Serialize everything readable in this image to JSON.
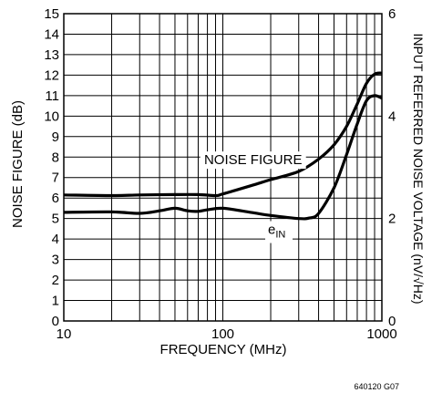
{
  "chart_data": {
    "type": "line",
    "x_scale": "log",
    "xlim": [
      10,
      1000
    ],
    "ylim": [
      0,
      15
    ],
    "y2lim": [
      0,
      6
    ],
    "grid": true,
    "xlabel": "FREQUENCY (MHz)",
    "ylabel": "NOISE FIGURE (dB)",
    "y2label": "INPUT REFERRED NOISE VOLTAGE (nV/√Hz)",
    "x_ticks": [
      10,
      100,
      1000
    ],
    "x_tick_labels": [
      "10",
      "100",
      "1000"
    ],
    "y_ticks": [
      0,
      1,
      2,
      3,
      4,
      5,
      6,
      7,
      8,
      9,
      10,
      11,
      12,
      13,
      14,
      15
    ],
    "y_tick_labels": [
      "0",
      "1",
      "2",
      "3",
      "4",
      "5",
      "6",
      "7",
      "8",
      "9",
      "10",
      "11",
      "12",
      "13",
      "14",
      "15"
    ],
    "y2_ticks": [
      0,
      2,
      4,
      6
    ],
    "y2_tick_labels": [
      "0",
      "2",
      "4",
      "6"
    ],
    "figure_id": "640120 G07",
    "series": [
      {
        "name": "NOISE FIGURE",
        "axis": "left",
        "x": [
          10,
          20,
          30,
          50,
          70,
          90,
          100,
          150,
          200,
          300,
          400,
          500,
          600,
          700,
          800,
          900,
          1000
        ],
        "y": [
          6.15,
          6.12,
          6.15,
          6.17,
          6.17,
          6.12,
          6.2,
          6.6,
          6.9,
          7.3,
          7.9,
          8.6,
          9.5,
          10.6,
          11.6,
          12.05,
          12.1
        ]
      },
      {
        "name": "e",
        "name_sub": "IN",
        "axis": "right",
        "x": [
          10,
          20,
          30,
          40,
          50,
          60,
          70,
          80,
          100,
          150,
          200,
          300,
          350,
          400,
          500,
          600,
          700,
          800,
          900,
          1000
        ],
        "y": [
          2.12,
          2.13,
          2.1,
          2.15,
          2.2,
          2.15,
          2.14,
          2.17,
          2.2,
          2.12,
          2.06,
          2.0,
          2.01,
          2.1,
          2.6,
          3.25,
          3.85,
          4.3,
          4.4,
          4.35
        ]
      }
    ]
  }
}
